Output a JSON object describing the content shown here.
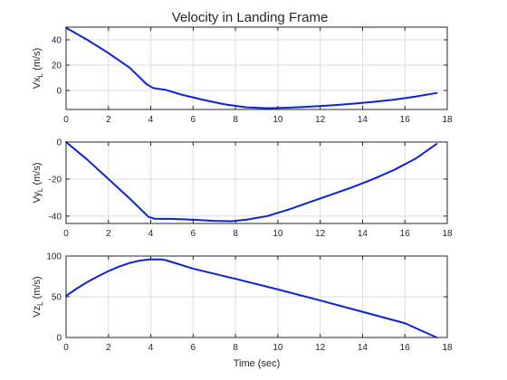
{
  "figure": {
    "title": "Velocity in Landing Frame"
  },
  "colors": {
    "line": "#0a22d8",
    "grid": "#dcdcdc",
    "axes": "#262626"
  },
  "chart_data": [
    {
      "type": "line",
      "title": "Velocity in Landing Frame",
      "ylabel": {
        "main": "Vx",
        "sub": "L",
        "unit": " (m/s)"
      },
      "xlabel": "",
      "xlim": [
        0,
        18
      ],
      "ylim": [
        -15,
        50
      ],
      "xticks": [
        0,
        2,
        4,
        6,
        8,
        10,
        12,
        14,
        16,
        18
      ],
      "yticks": [
        0,
        20,
        40
      ],
      "grid": true,
      "x": [
        0,
        1,
        2,
        3,
        3.8,
        4.1,
        4.4,
        4.7,
        5.5,
        6.5,
        7.5,
        8.5,
        9.5,
        10.5,
        11.5,
        12.5,
        13.5,
        14.5,
        15.5,
        16.5,
        17.5
      ],
      "y": [
        49.5,
        40,
        29.5,
        18,
        5,
        2,
        1.2,
        0.5,
        -3.5,
        -7.5,
        -11,
        -13.3,
        -14,
        -13.6,
        -12.8,
        -11.8,
        -10.5,
        -9,
        -7.2,
        -4.8,
        -2
      ]
    },
    {
      "type": "line",
      "title": "",
      "ylabel": {
        "main": "Vy",
        "sub": "L",
        "unit": " (m/s)"
      },
      "xlabel": "",
      "xlim": [
        0,
        18
      ],
      "ylim": [
        -44,
        0
      ],
      "xticks": [
        0,
        2,
        4,
        6,
        8,
        10,
        12,
        14,
        16,
        18
      ],
      "yticks": [
        -40,
        -20,
        0
      ],
      "grid": true,
      "x": [
        0,
        1,
        2,
        3,
        3.9,
        4.2,
        5,
        6,
        7,
        7.8,
        8.5,
        9.5,
        10.5,
        11.5,
        12.5,
        13.5,
        14.5,
        15.5,
        16.5,
        17.5
      ],
      "y": [
        0,
        -9.5,
        -20,
        -30.5,
        -40.5,
        -41.5,
        -41.5,
        -42,
        -42.6,
        -42.8,
        -42,
        -40,
        -36.5,
        -32.5,
        -28.5,
        -24.5,
        -20,
        -15,
        -9,
        -1
      ]
    },
    {
      "type": "line",
      "title": "",
      "ylabel": {
        "main": "Vz",
        "sub": "L",
        "unit": " (m/s)"
      },
      "xlabel": "Time (sec)",
      "xlim": [
        0,
        18
      ],
      "ylim": [
        0,
        100
      ],
      "xticks": [
        0,
        2,
        4,
        6,
        8,
        10,
        12,
        14,
        16,
        18
      ],
      "yticks": [
        0,
        50,
        100
      ],
      "grid": true,
      "x": [
        0,
        0.5,
        1,
        1.5,
        2,
        2.5,
        3,
        3.5,
        4,
        4.5,
        4.7,
        6,
        8,
        10,
        12,
        14,
        16,
        17.5
      ],
      "y": [
        51,
        60,
        68,
        75,
        81.5,
        87,
        91.5,
        94.5,
        96,
        95.8,
        95,
        84.5,
        72,
        59,
        45.5,
        31.5,
        17.5,
        0
      ]
    }
  ]
}
